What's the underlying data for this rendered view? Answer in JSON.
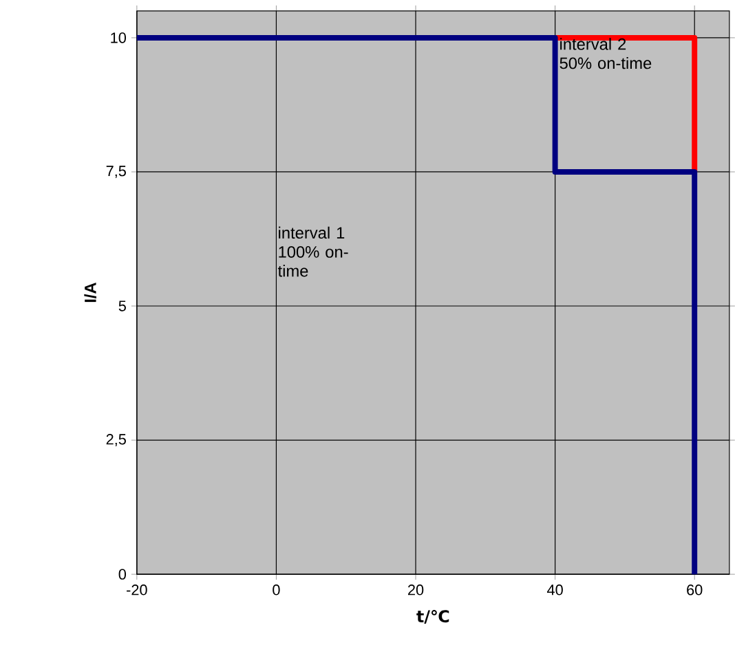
{
  "chart_data": {
    "type": "line",
    "xlabel": "t/℃",
    "ylabel": "I/A",
    "xlim": [
      -20,
      65
    ],
    "ylim": [
      0,
      10.5
    ],
    "xticks": [
      -20,
      0,
      20,
      40,
      60
    ],
    "yticks": [
      0,
      {
        "value": 2.5,
        "label": "2,5"
      },
      5,
      {
        "value": 7.5,
        "label": "7,5"
      },
      10
    ],
    "grid": true,
    "marker": "none",
    "line_style": "solid",
    "series": [
      {
        "color": "#ff0000",
        "x": [
          40,
          60,
          60
        ],
        "values": [
          10,
          10,
          7.5
        ]
      },
      {
        "color": "#000080",
        "x": [
          -20,
          40,
          40,
          60,
          60
        ],
        "values": [
          10,
          10,
          7.5,
          7.5,
          0
        ]
      }
    ],
    "annotations": [
      "interval 1 100% on-time",
      "interval 2 50% on-time"
    ]
  }
}
